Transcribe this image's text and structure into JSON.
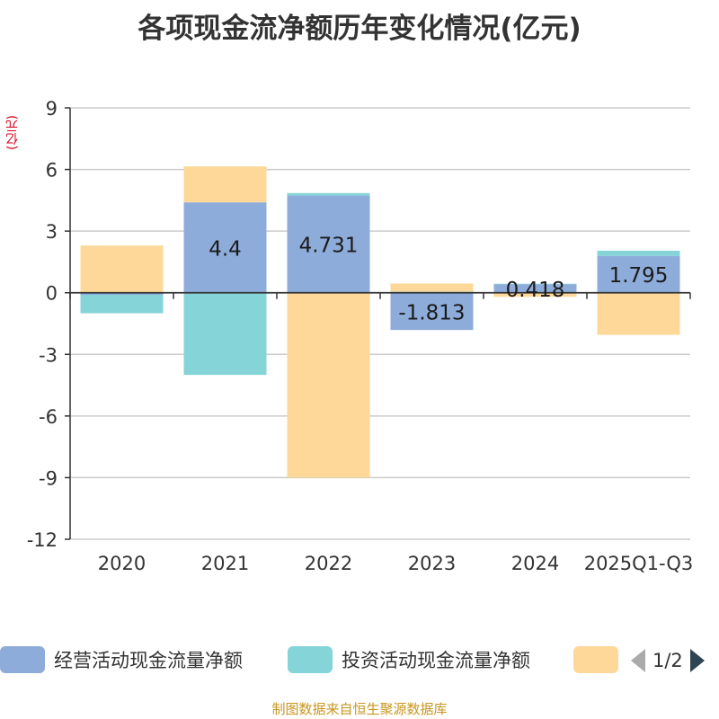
{
  "title": "各项现金流净额历年变化情况(亿元)",
  "unit_label": "(亿元)",
  "source": "制图数据来自恒生聚源数据库",
  "legend": {
    "items": [
      {
        "label": "经营活动现金流量净额",
        "color": "#8eacda"
      },
      {
        "label": "投资活动现金流量净额",
        "color": "#85d5d8"
      },
      {
        "label": "",
        "color": "#fdd899"
      }
    ],
    "page": "1/2"
  },
  "chart_data": {
    "type": "bar",
    "stacked": true,
    "title": "各项现金流净额历年变化情况(亿元)",
    "ylabel": "(亿元)",
    "categories": [
      "2020",
      "2021",
      "2022",
      "2023",
      "2024",
      "2025Q1-Q3"
    ],
    "ylim": [
      -12,
      9
    ],
    "yticks": [
      9,
      6,
      3,
      0,
      -3,
      -6,
      -9,
      -12
    ],
    "grid": true,
    "series": [
      {
        "name": "经营活动现金流量净额",
        "color": "#8eacda",
        "values": [
          -0.1,
          4.4,
          4.731,
          -1.813,
          0.418,
          1.795
        ],
        "labels": [
          "",
          "4.4",
          "4.731",
          "-1.813",
          "0.418",
          "1.795"
        ]
      },
      {
        "name": "投资活动现金流量净额",
        "color": "#85d5d8",
        "values": [
          -0.9,
          -4.0,
          0.12,
          0.05,
          0.02,
          0.25
        ]
      },
      {
        "name": "",
        "color": "#fdd899",
        "values": [
          2.3,
          1.75,
          -9.0,
          0.4,
          -0.2,
          -2.05
        ]
      }
    ]
  }
}
